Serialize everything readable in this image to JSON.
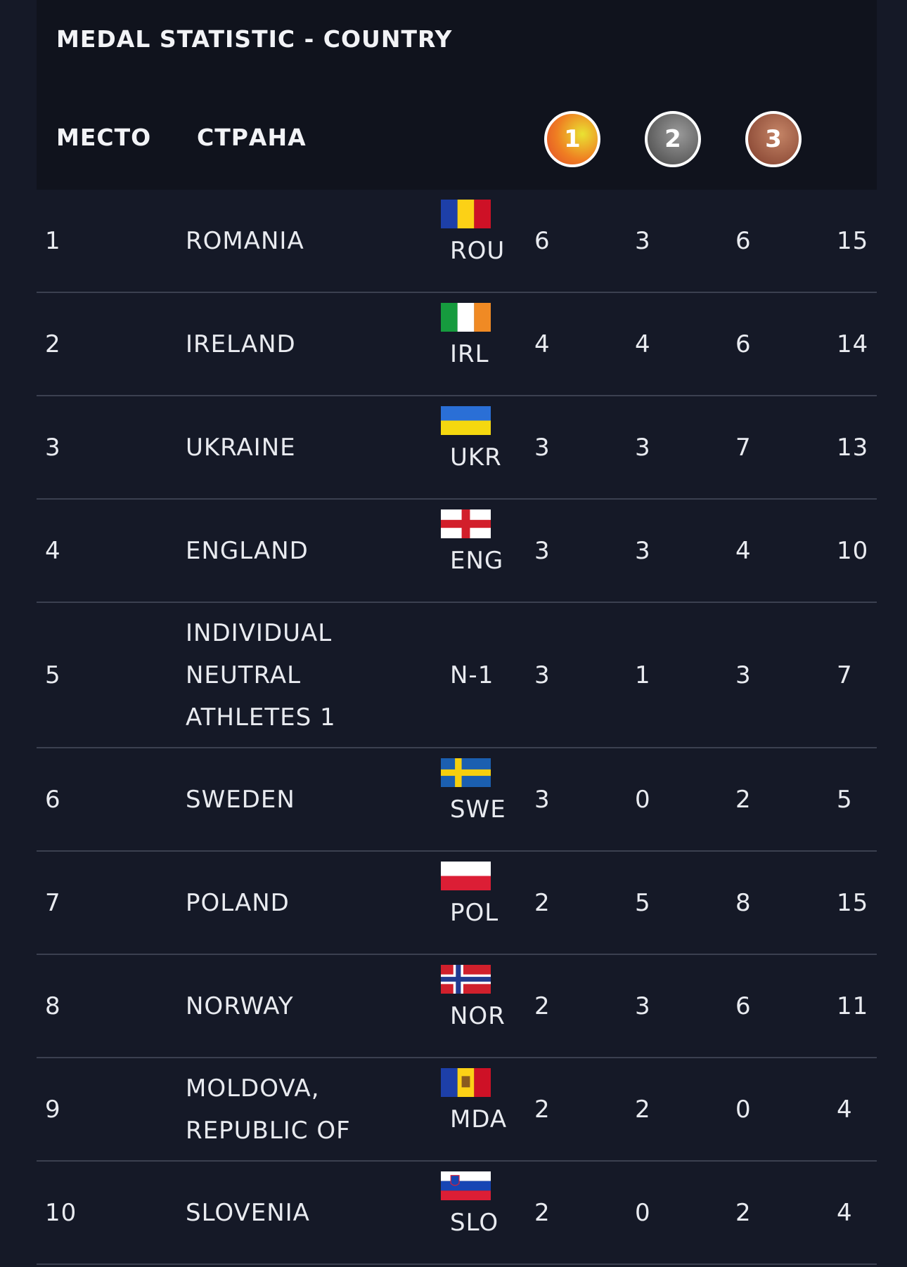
{
  "header": {
    "title": "MEDAL STATISTIC - COUNTRY",
    "columns": [
      "МЕСТО",
      "СТРАНА"
    ],
    "medals": [
      "1",
      "2",
      "3"
    ]
  },
  "table": {
    "rows": [
      [
        1,
        "ROMANIA",
        "ROU",
        6,
        3,
        6,
        15
      ],
      [
        2,
        "IRELAND",
        "IRL",
        4,
        4,
        6,
        14
      ],
      [
        3,
        "UKRAINE",
        "UKR",
        3,
        3,
        7,
        13
      ],
      [
        4,
        "ENGLAND",
        "ENG",
        3,
        3,
        4,
        10
      ],
      [
        5,
        "INDIVIDUAL NEUTRAL ATHLETES 1",
        "N-1",
        3,
        1,
        3,
        7
      ],
      [
        6,
        "SWEDEN",
        "SWE",
        3,
        0,
        2,
        5
      ],
      [
        7,
        "POLAND",
        "POL",
        2,
        5,
        8,
        15
      ],
      [
        8,
        "NORWAY",
        "NOR",
        2,
        3,
        6,
        11
      ],
      [
        9,
        "MOLDOVA, REPUBLIC OF",
        "MDA",
        2,
        2,
        0,
        4
      ],
      [
        10,
        "SLOVENIA",
        "SLO",
        2,
        0,
        2,
        4
      ]
    ]
  }
}
